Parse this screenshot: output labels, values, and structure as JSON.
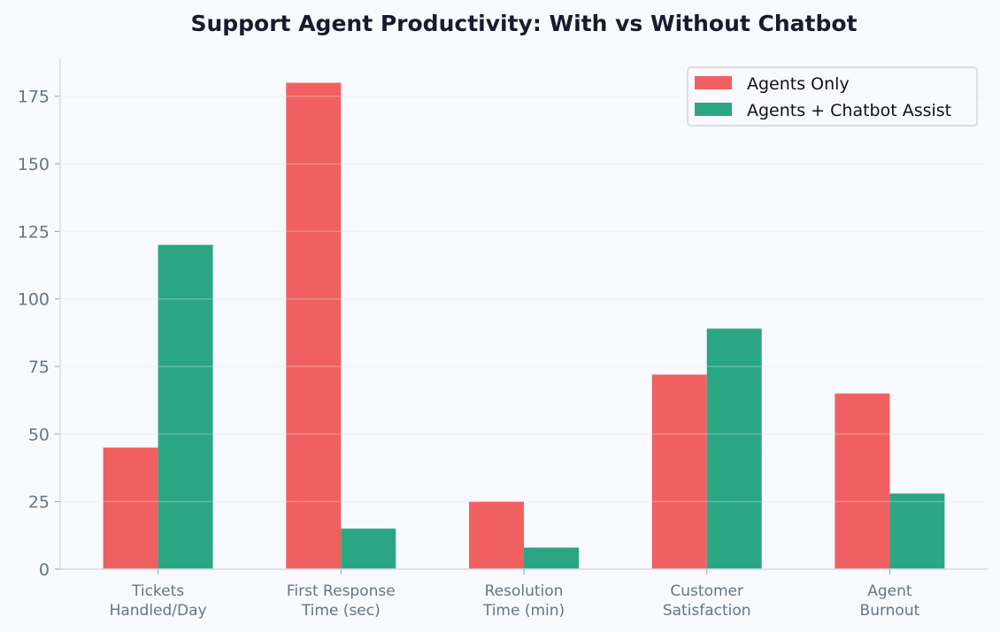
{
  "chart_data": {
    "type": "bar",
    "title": "Support Agent Productivity: With vs Without Chatbot",
    "xlabel": "",
    "ylabel": "",
    "categories": [
      [
        "Tickets",
        "Handled/Day"
      ],
      [
        "First Response",
        "Time (sec)"
      ],
      [
        "Resolution",
        "Time (min)"
      ],
      [
        "Customer",
        "Satisfaction"
      ],
      [
        "Agent",
        "Burnout"
      ]
    ],
    "series": [
      {
        "name": "Agents Only",
        "color": "#f06060",
        "values": [
          45,
          180,
          25,
          72,
          65
        ]
      },
      {
        "name": "Agents + Chatbot Assist",
        "color": "#2ba682",
        "values": [
          120,
          15,
          8,
          89,
          28
        ]
      }
    ],
    "ylim": [
      0,
      189
    ],
    "yticks": [
      0,
      25,
      50,
      75,
      100,
      125,
      150,
      175
    ],
    "grid": true,
    "legend_position": "top-right"
  }
}
